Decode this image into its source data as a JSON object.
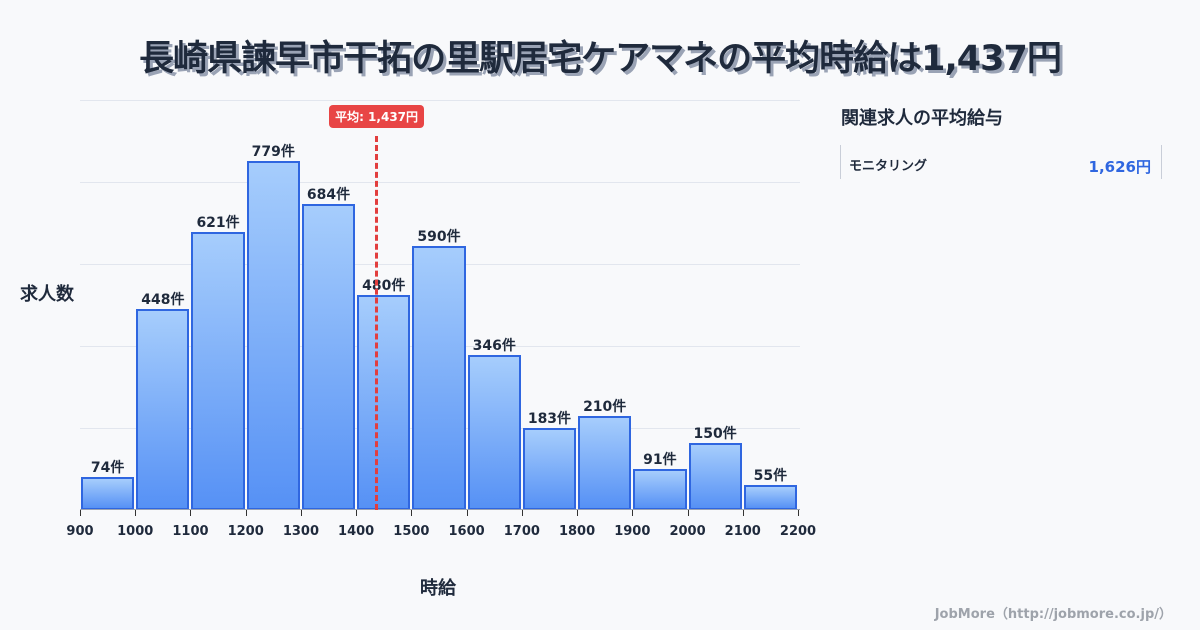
{
  "title": "長崎県諫早市干拓の里駅居宅ケアマネの平均時給は1,437円",
  "avg_badge": "平均: 1,437円",
  "side": {
    "title": "関連求人の平均給与",
    "items": [
      {
        "name": "モニタリング",
        "value": "1,626円"
      }
    ]
  },
  "footer": "JobMore（http://jobmore.co.jp/）",
  "colors": {
    "bar_fill_top": "#a6cdfc",
    "bar_fill_bottom": "#5691f5",
    "bar_border": "#2f66e0",
    "avg_line": "#e23e3e",
    "accent_value": "#2f66e0"
  },
  "chart_data": {
    "type": "bar",
    "title": "長崎県諫早市干拓の里駅居宅ケアマネの平均時給は1,437円",
    "xlabel": "時給",
    "ylabel": "求人数",
    "x_ticks": [
      "900",
      "1000",
      "1100",
      "1200",
      "1300",
      "1400",
      "1500",
      "1600",
      "1700",
      "1800",
      "1900",
      "2000",
      "2100",
      "2200"
    ],
    "categories": [
      "900-1000",
      "1000-1100",
      "1100-1200",
      "1200-1300",
      "1300-1400",
      "1400-1500",
      "1500-1600",
      "1600-1700",
      "1700-1800",
      "1800-1900",
      "1900-2000",
      "2000-2100",
      "2100-2200"
    ],
    "values": [
      74,
      448,
      621,
      779,
      684,
      480,
      590,
      346,
      183,
      210,
      91,
      150,
      55
    ],
    "value_labels": [
      "74件",
      "448件",
      "621件",
      "779件",
      "684件",
      "480件",
      "590件",
      "346件",
      "183件",
      "210件",
      "91件",
      "150件",
      "55件"
    ],
    "average": 1437,
    "average_label": "平均: 1,437円",
    "xlim": [
      900,
      2200
    ],
    "grid": true
  }
}
